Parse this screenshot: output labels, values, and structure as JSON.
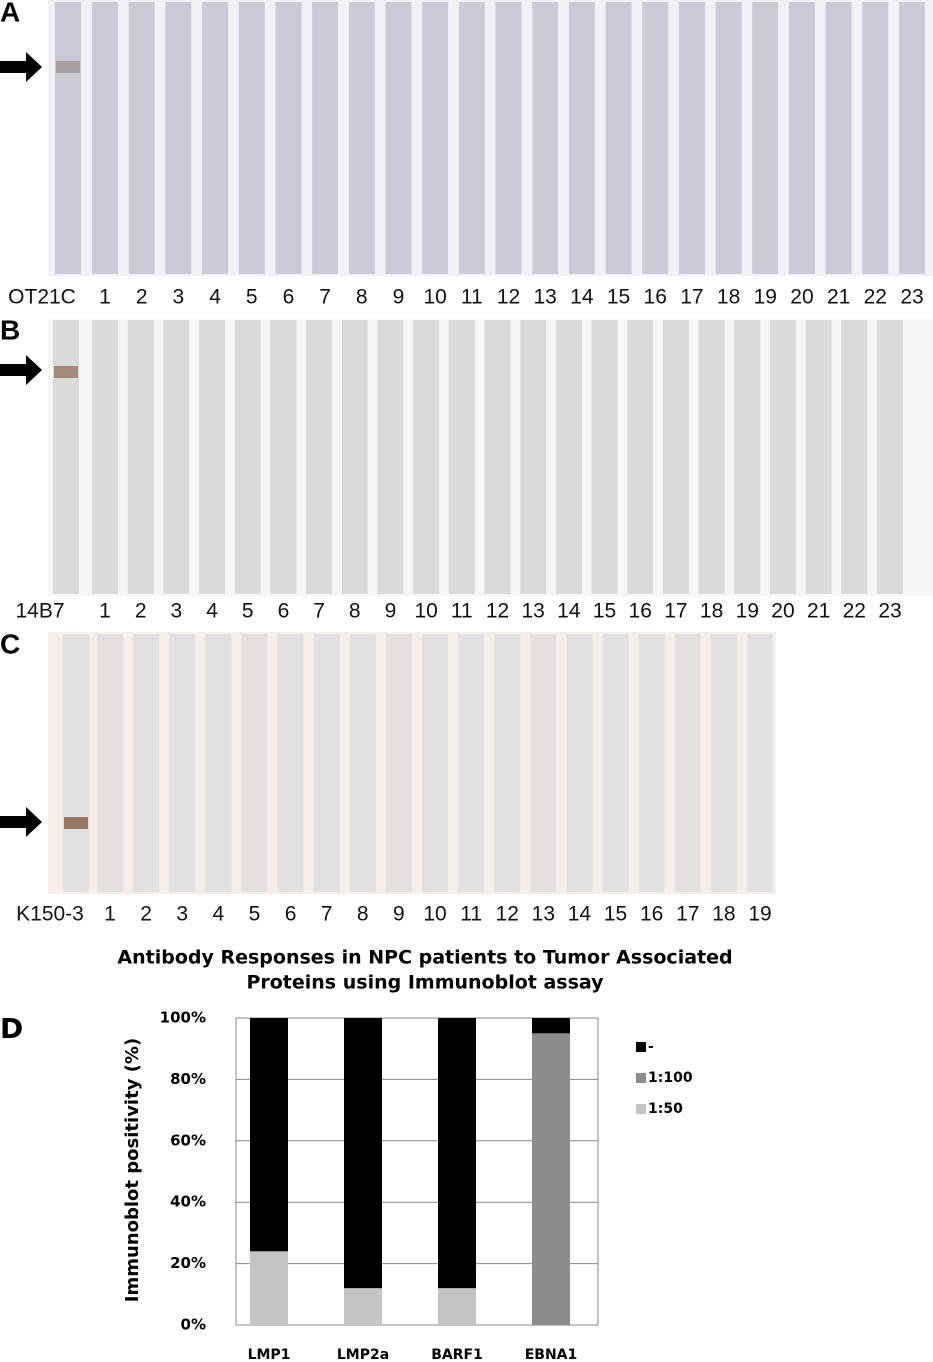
{
  "panels": [
    {
      "label": "A",
      "lanes": [
        "OT21C",
        "1",
        "2",
        "3",
        "4",
        "5",
        "6",
        "7",
        "8",
        "9",
        "10",
        "11",
        "12",
        "13",
        "14",
        "15",
        "16",
        "17",
        "18",
        "19",
        "20",
        "21",
        "22",
        "23"
      ]
    },
    {
      "label": "B",
      "lanes": [
        "14B7",
        "1",
        "2",
        "3",
        "4",
        "5",
        "6",
        "7",
        "8",
        "9",
        "10",
        "11",
        "12",
        "13",
        "14",
        "15",
        "16",
        "17",
        "18",
        "19",
        "20",
        "21",
        "22",
        "23"
      ]
    },
    {
      "label": "C",
      "lanes": [
        "K150-3",
        "1",
        "2",
        "3",
        "4",
        "5",
        "6",
        "7",
        "8",
        "9",
        "10",
        "11",
        "12",
        "13",
        "14",
        "15",
        "16",
        "17",
        "18",
        "19"
      ]
    }
  ],
  "chart_label": "D",
  "chart_data": {
    "type": "bar",
    "stacked": true,
    "title": [
      "Antibody Responses in NPC patients to Tumor Associated",
      "Proteins using Immunoblot assay"
    ],
    "y_label": "Immunoblot positivity (%)",
    "categories": [
      "LMP1",
      "LMP2a",
      "BARF1",
      "EBNA1"
    ],
    "series": [
      {
        "name": "1:50",
        "color": "#c4c4c4",
        "values": [
          24,
          12,
          12,
          0
        ]
      },
      {
        "name": "1:100",
        "color": "#8c8c8c",
        "values": [
          0,
          0,
          0,
          95
        ]
      },
      {
        "name": "-",
        "color": "#000000",
        "values": [
          76,
          88,
          88,
          5
        ]
      }
    ],
    "ylim": [
      0,
      100
    ],
    "yticks": [
      {
        "value": 0,
        "label": "0%"
      },
      {
        "value": 20,
        "label": "20%"
      },
      {
        "value": 40,
        "label": "40%"
      },
      {
        "value": 60,
        "label": "60%"
      },
      {
        "value": 80,
        "label": "80%"
      },
      {
        "value": 100,
        "label": "100%"
      }
    ],
    "grid": true,
    "legend": "right"
  }
}
